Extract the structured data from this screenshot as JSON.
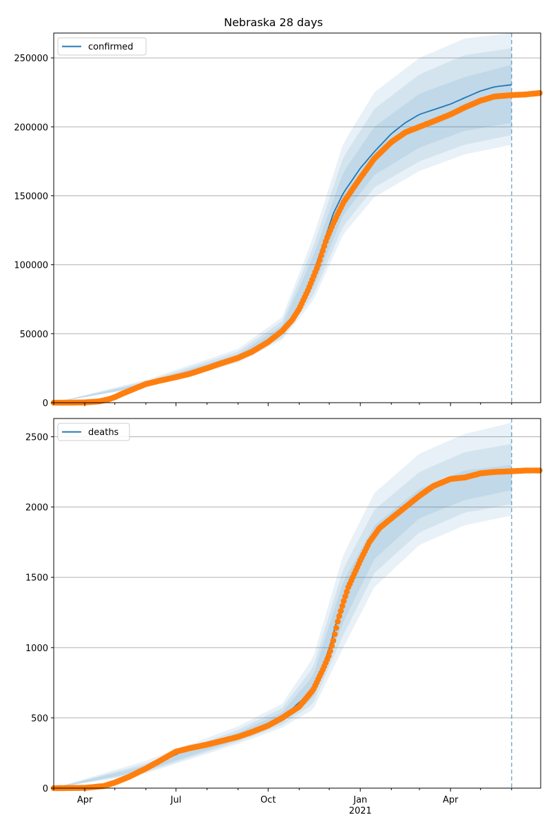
{
  "title": "Nebraska 28 days",
  "colors": {
    "model_line": "#1f77b4",
    "band": "#1f77b4",
    "observed": "#ff7f0e",
    "grid": "#b0b0b0",
    "axis": "#000000",
    "vline": "#1f77b4"
  },
  "x_axis": {
    "start": "2020-03-01",
    "end": "2021-06-30",
    "tick_labels": [
      {
        "date": "2020-04-01",
        "label": "Apr",
        "sub": ""
      },
      {
        "date": "2020-07-01",
        "label": "Jul",
        "sub": ""
      },
      {
        "date": "2020-10-01",
        "label": "Oct",
        "sub": ""
      },
      {
        "date": "2021-01-01",
        "label": "Jan",
        "sub": "2021"
      },
      {
        "date": "2021-04-01",
        "label": "Apr",
        "sub": ""
      }
    ],
    "minor_ticks": [
      "2020-03-01",
      "2020-05-01",
      "2020-06-01",
      "2020-08-01",
      "2020-09-01",
      "2020-11-01",
      "2020-12-01",
      "2021-02-01",
      "2021-03-01",
      "2021-05-01",
      "2021-06-01",
      "2021-07-01"
    ],
    "forecast_line_date": "2021-06-01"
  },
  "chart_data": [
    {
      "type": "line",
      "legend": "confirmed",
      "legend_position": "top-left",
      "grid": "horizontal",
      "ylim": [
        0,
        268000
      ],
      "yticks": [
        0,
        50000,
        100000,
        150000,
        200000,
        250000
      ],
      "observed_points": [
        [
          "2020-03-01",
          0
        ],
        [
          "2020-03-20",
          50
        ],
        [
          "2020-04-01",
          200
        ],
        [
          "2020-04-15",
          900
        ],
        [
          "2020-04-25",
          2500
        ],
        [
          "2020-05-01",
          4000
        ],
        [
          "2020-05-10",
          7000
        ],
        [
          "2020-05-20",
          10000
        ],
        [
          "2020-06-01",
          13500
        ],
        [
          "2020-06-15",
          16000
        ],
        [
          "2020-07-01",
          18500
        ],
        [
          "2020-07-15",
          21000
        ],
        [
          "2020-08-01",
          25000
        ],
        [
          "2020-08-15",
          28500
        ],
        [
          "2020-09-01",
          32500
        ],
        [
          "2020-09-15",
          37000
        ],
        [
          "2020-10-01",
          44000
        ],
        [
          "2020-10-15",
          52000
        ],
        [
          "2020-10-25",
          60000
        ],
        [
          "2020-11-01",
          68000
        ],
        [
          "2020-11-10",
          82000
        ],
        [
          "2020-11-20",
          100000
        ],
        [
          "2020-11-28",
          118000
        ],
        [
          "2020-12-05",
          130000
        ],
        [
          "2020-12-15",
          145000
        ],
        [
          "2021-01-01",
          163000
        ],
        [
          "2021-01-15",
          177000
        ],
        [
          "2021-02-01",
          189000
        ],
        [
          "2021-02-15",
          196000
        ],
        [
          "2021-03-01",
          200000
        ],
        [
          "2021-03-15",
          204000
        ],
        [
          "2021-04-01",
          209000
        ],
        [
          "2021-04-15",
          214000
        ],
        [
          "2021-05-01",
          219000
        ],
        [
          "2021-05-15",
          222000
        ],
        [
          "2021-06-01",
          223000
        ],
        [
          "2021-06-15",
          223500
        ],
        [
          "2021-06-29",
          224500
        ]
      ],
      "median": [
        [
          "2020-03-01",
          0
        ],
        [
          "2020-04-15",
          900
        ],
        [
          "2020-05-01",
          4000
        ],
        [
          "2020-06-01",
          13500
        ],
        [
          "2020-07-01",
          18800
        ],
        [
          "2020-08-01",
          25500
        ],
        [
          "2020-09-01",
          33000
        ],
        [
          "2020-10-01",
          44500
        ],
        [
          "2020-10-25",
          60500
        ],
        [
          "2020-11-10",
          83000
        ],
        [
          "2020-11-25",
          115000
        ],
        [
          "2020-12-05",
          137000
        ],
        [
          "2020-12-15",
          152000
        ],
        [
          "2021-01-01",
          170000
        ],
        [
          "2021-01-15",
          182000
        ],
        [
          "2021-02-01",
          195000
        ],
        [
          "2021-02-15",
          203000
        ],
        [
          "2021-03-01",
          209000
        ],
        [
          "2021-04-01",
          216500
        ],
        [
          "2021-04-15",
          221000
        ],
        [
          "2021-05-01",
          226000
        ],
        [
          "2021-05-15",
          229000
        ],
        [
          "2021-06-01",
          230500
        ]
      ],
      "bands": [
        {
          "lower": [
            [
              "2020-03-01",
              0
            ],
            [
              "2020-06-01",
              12500
            ],
            [
              "2020-09-01",
              31000
            ],
            [
              "2020-10-15",
              49000
            ],
            [
              "2020-11-15",
              83000
            ],
            [
              "2020-12-15",
              136000
            ],
            [
              "2021-01-15",
              165000
            ],
            [
              "2021-03-01",
              185000
            ],
            [
              "2021-04-15",
              197000
            ],
            [
              "2021-06-01",
              203000
            ]
          ],
          "upper": [
            [
              "2020-03-01",
              0
            ],
            [
              "2020-06-01",
              14500
            ],
            [
              "2020-09-01",
              35000
            ],
            [
              "2020-10-15",
              56000
            ],
            [
              "2020-11-15",
              106000
            ],
            [
              "2020-12-15",
              167000
            ],
            [
              "2021-01-15",
              200000
            ],
            [
              "2021-03-01",
              224000
            ],
            [
              "2021-04-15",
              236000
            ],
            [
              "2021-06-01",
              245000
            ]
          ]
        },
        {
          "lower": [
            [
              "2020-03-01",
              0
            ],
            [
              "2020-06-01",
              12000
            ],
            [
              "2020-09-01",
              30000
            ],
            [
              "2020-10-15",
              47000
            ],
            [
              "2020-11-15",
              78000
            ],
            [
              "2020-12-15",
              128000
            ],
            [
              "2021-01-15",
              156000
            ],
            [
              "2021-03-01",
              175000
            ],
            [
              "2021-04-15",
              187000
            ],
            [
              "2021-06-01",
              194000
            ]
          ],
          "upper": [
            [
              "2020-03-01",
              0
            ],
            [
              "2020-06-01",
              15500
            ],
            [
              "2020-09-01",
              37000
            ],
            [
              "2020-10-15",
              59000
            ],
            [
              "2020-11-15",
              113000
            ],
            [
              "2020-12-15",
              178000
            ],
            [
              "2021-01-15",
              213000
            ],
            [
              "2021-03-01",
              238000
            ],
            [
              "2021-04-15",
              252000
            ],
            [
              "2021-06-01",
              257000
            ]
          ]
        },
        {
          "lower": [
            [
              "2020-03-01",
              0
            ],
            [
              "2020-06-01",
              11500
            ],
            [
              "2020-09-01",
              29000
            ],
            [
              "2020-10-15",
              45500
            ],
            [
              "2020-11-15",
              74000
            ],
            [
              "2020-12-15",
              122000
            ],
            [
              "2021-01-15",
              149000
            ],
            [
              "2021-03-01",
              168000
            ],
            [
              "2021-04-15",
              180000
            ],
            [
              "2021-06-01",
              187000
            ]
          ],
          "upper": [
            [
              "2020-03-01",
              0
            ],
            [
              "2020-06-01",
              16500
            ],
            [
              "2020-09-01",
              39000
            ],
            [
              "2020-10-15",
              62000
            ],
            [
              "2020-11-15",
              120000
            ],
            [
              "2020-12-15",
              188000
            ],
            [
              "2021-01-15",
              225000
            ],
            [
              "2021-03-01",
              250000
            ],
            [
              "2021-04-15",
              264000
            ],
            [
              "2021-06-01",
              268000
            ]
          ]
        }
      ]
    },
    {
      "type": "line",
      "legend": "deaths",
      "legend_position": "top-left",
      "grid": "horizontal",
      "ylim": [
        0,
        2630
      ],
      "yticks": [
        0,
        500,
        1000,
        1500,
        2000,
        2500
      ],
      "observed_points": [
        [
          "2020-03-01",
          0
        ],
        [
          "2020-04-01",
          2
        ],
        [
          "2020-04-20",
          15
        ],
        [
          "2020-05-01",
          40
        ],
        [
          "2020-05-15",
          80
        ],
        [
          "2020-06-01",
          140
        ],
        [
          "2020-06-15",
          195
        ],
        [
          "2020-07-01",
          260
        ],
        [
          "2020-07-15",
          285
        ],
        [
          "2020-08-01",
          310
        ],
        [
          "2020-08-15",
          335
        ],
        [
          "2020-09-01",
          365
        ],
        [
          "2020-09-15",
          400
        ],
        [
          "2020-10-01",
          445
        ],
        [
          "2020-10-15",
          500
        ],
        [
          "2020-11-01",
          580
        ],
        [
          "2020-11-15",
          700
        ],
        [
          "2020-11-25",
          850
        ],
        [
          "2020-12-01",
          950
        ],
        [
          "2020-12-05",
          1050
        ],
        [
          "2020-12-10",
          1200
        ],
        [
          "2020-12-15",
          1320
        ],
        [
          "2020-12-20",
          1430
        ],
        [
          "2021-01-01",
          1620
        ],
        [
          "2021-01-10",
          1750
        ],
        [
          "2021-01-20",
          1850
        ],
        [
          "2021-02-01",
          1920
        ],
        [
          "2021-02-15",
          2000
        ],
        [
          "2021-03-01",
          2080
        ],
        [
          "2021-03-15",
          2150
        ],
        [
          "2021-04-01",
          2200
        ],
        [
          "2021-04-15",
          2210
        ],
        [
          "2021-05-01",
          2240
        ],
        [
          "2021-05-15",
          2250
        ],
        [
          "2021-06-01",
          2255
        ],
        [
          "2021-06-15",
          2260
        ],
        [
          "2021-06-29",
          2260
        ]
      ],
      "median": [
        [
          "2020-03-01",
          0
        ],
        [
          "2020-04-20",
          15
        ],
        [
          "2020-06-01",
          140
        ],
        [
          "2020-07-15",
          285
        ],
        [
          "2020-09-01",
          365
        ],
        [
          "2020-10-15",
          500
        ],
        [
          "2020-11-15",
          700
        ],
        [
          "2020-12-01",
          990
        ],
        [
          "2020-12-10",
          1230
        ],
        [
          "2020-12-20",
          1430
        ]
      ],
      "bands": [
        {
          "lower": [
            [
              "2020-03-01",
              0
            ],
            [
              "2020-06-01",
              125
            ],
            [
              "2020-09-01",
              345
            ],
            [
              "2020-10-15",
              470
            ],
            [
              "2020-11-15",
              640
            ],
            [
              "2020-12-15",
              1180
            ],
            [
              "2021-01-15",
              1630
            ],
            [
              "2021-03-01",
              1920
            ],
            [
              "2021-04-15",
              2050
            ],
            [
              "2021-06-01",
              2120
            ]
          ],
          "upper": [
            [
              "2020-03-01",
              0
            ],
            [
              "2020-06-01",
              160
            ],
            [
              "2020-09-01",
              395
            ],
            [
              "2020-10-15",
              540
            ],
            [
              "2020-11-15",
              800
            ],
            [
              "2020-12-15",
              1470
            ],
            [
              "2021-01-15",
              1870
            ],
            [
              "2021-03-01",
              2130
            ],
            [
              "2021-04-15",
              2260
            ],
            [
              "2021-06-01",
              2300
            ]
          ]
        },
        {
          "lower": [
            [
              "2020-03-01",
              0
            ],
            [
              "2020-06-01",
              115
            ],
            [
              "2020-09-01",
              330
            ],
            [
              "2020-10-15",
              450
            ],
            [
              "2020-11-15",
              600
            ],
            [
              "2020-12-15",
              1090
            ],
            [
              "2021-01-15",
              1530
            ],
            [
              "2021-03-01",
              1820
            ],
            [
              "2021-04-15",
              1960
            ],
            [
              "2021-06-01",
              2020
            ]
          ],
          "upper": [
            [
              "2020-03-01",
              0
            ],
            [
              "2020-06-01",
              175
            ],
            [
              "2020-09-01",
              415
            ],
            [
              "2020-10-15",
              570
            ],
            [
              "2020-11-15",
              860
            ],
            [
              "2020-12-15",
              1560
            ],
            [
              "2021-01-15",
              1980
            ],
            [
              "2021-03-01",
              2250
            ],
            [
              "2021-04-15",
              2390
            ],
            [
              "2021-06-01",
              2450
            ]
          ]
        },
        {
          "lower": [
            [
              "2020-03-01",
              0
            ],
            [
              "2020-06-01",
              105
            ],
            [
              "2020-09-01",
              315
            ],
            [
              "2020-10-15",
              430
            ],
            [
              "2020-11-15",
              560
            ],
            [
              "2020-12-15",
              1000
            ],
            [
              "2021-01-15",
              1430
            ],
            [
              "2021-03-01",
              1730
            ],
            [
              "2021-04-15",
              1870
            ],
            [
              "2021-06-01",
              1940
            ]
          ],
          "upper": [
            [
              "2020-03-01",
              0
            ],
            [
              "2020-06-01",
              195
            ],
            [
              "2020-09-01",
              440
            ],
            [
              "2020-10-15",
              600
            ],
            [
              "2020-11-15",
              930
            ],
            [
              "2020-12-15",
              1660
            ],
            [
              "2021-01-15",
              2100
            ],
            [
              "2021-03-01",
              2380
            ],
            [
              "2021-04-15",
              2520
            ],
            [
              "2021-06-01",
              2600
            ]
          ]
        }
      ]
    }
  ]
}
